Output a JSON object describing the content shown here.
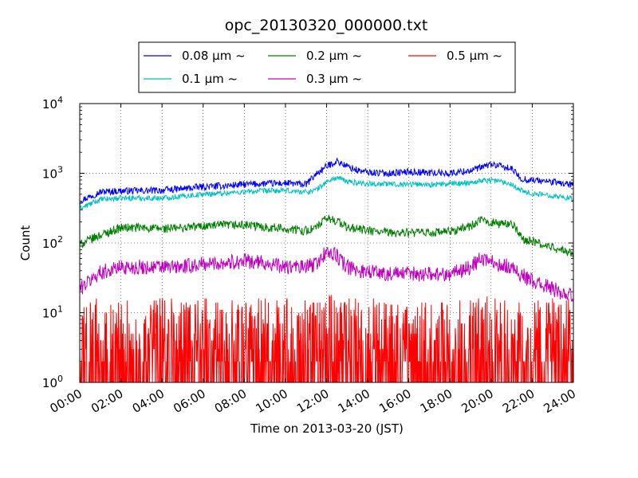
{
  "chart_data": {
    "type": "line",
    "title": "opc_20130320_000000.txt",
    "xlabel": "Time on 2013-03-20 (JST)",
    "ylabel": "Count",
    "yscale": "log",
    "ylim": [
      1,
      10000
    ],
    "xlim": [
      "00:00",
      "24:00"
    ],
    "grid": true,
    "legend_placement": "top-center, above axes",
    "x_tick_labels": [
      "00:00",
      "02:00",
      "04:00",
      "06:00",
      "08:00",
      "10:00",
      "12:00",
      "14:00",
      "16:00",
      "18:00",
      "20:00",
      "22:00",
      "24:00"
    ],
    "y_ticks": [
      {
        "value": 1,
        "base": "10",
        "exp": "0"
      },
      {
        "value": 10,
        "base": "10",
        "exp": "1"
      },
      {
        "value": 100,
        "base": "10",
        "exp": "2"
      },
      {
        "value": 1000,
        "base": "10",
        "exp": "3"
      },
      {
        "value": 10000,
        "base": "10",
        "exp": "4"
      }
    ],
    "x_hours": [
      0,
      1,
      2,
      3,
      4,
      5,
      6,
      7,
      8,
      9,
      10,
      11,
      11.5,
      12,
      12.5,
      13,
      13.5,
      14,
      15,
      16,
      17,
      18,
      19,
      19.5,
      20,
      20.5,
      21,
      21.5,
      22,
      23,
      24
    ],
    "series": [
      {
        "name": "0.08 μm ~",
        "color": "#0000ff",
        "noise": 0.1,
        "values": [
          400,
          540,
          560,
          560,
          570,
          600,
          640,
          660,
          690,
          710,
          720,
          690,
          980,
          1250,
          1500,
          1250,
          1100,
          1030,
          1000,
          1050,
          1020,
          1000,
          1100,
          1200,
          1350,
          1250,
          1150,
          820,
          800,
          750,
          680
        ]
      },
      {
        "name": "0.1 μm ~",
        "color": "#00bfbf",
        "noise": 0.08,
        "values": [
          310,
          420,
          440,
          440,
          440,
          470,
          500,
          520,
          540,
          560,
          560,
          540,
          580,
          750,
          870,
          760,
          730,
          710,
          700,
          700,
          690,
          700,
          740,
          780,
          800,
          760,
          700,
          560,
          510,
          480,
          430
        ]
      },
      {
        "name": "0.2 μm ~",
        "color": "#008000",
        "noise": 0.13,
        "values": [
          95,
          130,
          165,
          165,
          160,
          165,
          175,
          180,
          180,
          170,
          160,
          150,
          165,
          225,
          210,
          165,
          160,
          150,
          140,
          140,
          140,
          145,
          175,
          210,
          200,
          185,
          195,
          115,
          105,
          85,
          70
        ]
      },
      {
        "name": "0.3 μm ~",
        "color": "#bf00bf",
        "noise": 0.22,
        "values": [
          22,
          38,
          45,
          45,
          45,
          45,
          50,
          52,
          55,
          52,
          45,
          45,
          50,
          75,
          65,
          45,
          40,
          40,
          36,
          36,
          36,
          36,
          45,
          60,
          55,
          48,
          45,
          35,
          28,
          22,
          17
        ]
      },
      {
        "name": "0.5 μm ~",
        "color": "#ff0000",
        "noise": 0.55,
        "values": [
          3,
          3,
          3,
          3,
          3,
          3,
          3,
          3,
          3,
          3,
          3,
          3,
          3,
          3.8,
          3.5,
          3,
          3,
          3,
          3,
          3,
          3,
          3,
          3,
          3,
          3.2,
          3,
          3,
          3,
          3,
          3,
          3
        ]
      }
    ]
  }
}
